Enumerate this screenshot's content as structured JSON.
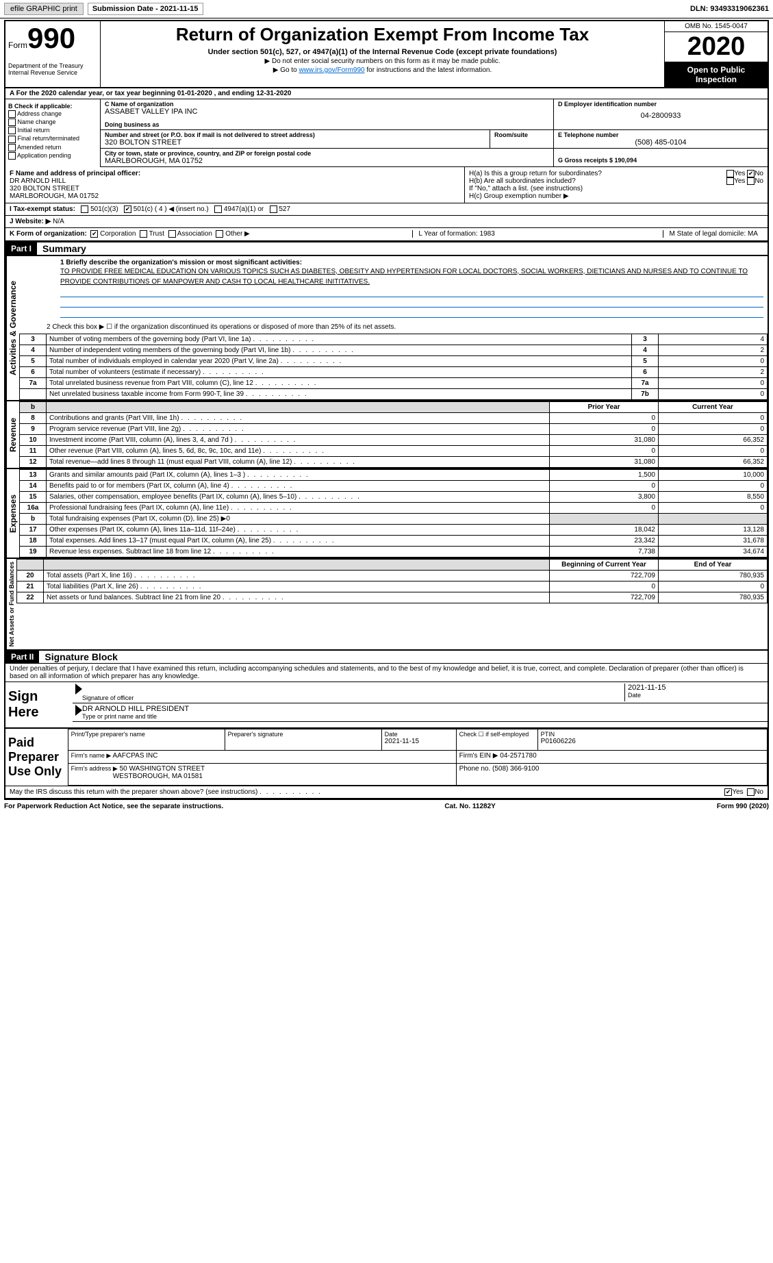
{
  "top_bar": {
    "efile_label": "efile GRAPHIC print",
    "sub_date_label": "Submission Date - 2021-11-15",
    "dln": "DLN: 93493319062361"
  },
  "header": {
    "form_word": "Form",
    "form_num": "990",
    "dept": "Department of the Treasury\nInternal Revenue Service",
    "title": "Return of Organization Exempt From Income Tax",
    "subtitle": "Under section 501(c), 527, or 4947(a)(1) of the Internal Revenue Code (except private foundations)",
    "line1": "▶ Do not enter social security numbers on this form as it may be made public.",
    "line2_pre": "▶ Go to ",
    "line2_link": "www.irs.gov/Form990",
    "line2_post": " for instructions and the latest information.",
    "omb": "OMB No. 1545-0047",
    "year": "2020",
    "otp": "Open to Public Inspection"
  },
  "section_a": "A For the 2020 calendar year, or tax year beginning 01-01-2020   , and ending 12-31-2020",
  "section_b": {
    "title": "B Check if applicable:",
    "items": [
      "Address change",
      "Name change",
      "Initial return",
      "Final return/terminated",
      "Amended return",
      "Application pending"
    ]
  },
  "section_c": {
    "name_label": "C Name of organization",
    "name": "ASSABET VALLEY IPA INC",
    "dba_label": "Doing business as",
    "addr_label": "Number and street (or P.O. box if mail is not delivered to street address)",
    "addr": "320 BOLTON STREET",
    "room_label": "Room/suite",
    "city_label": "City or town, state or province, country, and ZIP or foreign postal code",
    "city": "MARLBOROUGH, MA  01752"
  },
  "section_d": {
    "ein_label": "D Employer identification number",
    "ein": "04-2800933",
    "phone_label": "E Telephone number",
    "phone": "(508) 485-0104",
    "gross_label": "G Gross receipts $ 190,094"
  },
  "section_f": {
    "label": "F  Name and address of principal officer:",
    "name": "DR ARNOLD HILL",
    "addr1": "320 BOLTON STREET",
    "addr2": "MARLBOROUGH, MA  01752"
  },
  "section_h": {
    "ha_label": "H(a)  Is this a group return for subordinates?",
    "ha_yes": "Yes",
    "ha_no": "No",
    "hb_label": "H(b)  Are all subordinates included?",
    "hb_note": "If \"No,\" attach a list. (see instructions)",
    "hc_label": "H(c)  Group exemption number ▶"
  },
  "tax_exempt": {
    "i_label": "I   Tax-exempt status:",
    "opt1": "501(c)(3)",
    "opt2": "501(c) ( 4 ) ◀ (insert no.)",
    "opt3": "4947(a)(1) or",
    "opt4": "527"
  },
  "section_j": {
    "label": "J   Website: ▶",
    "value": "N/A"
  },
  "section_k": {
    "label": "K Form of organization:",
    "opts": [
      "Corporation",
      "Trust",
      "Association",
      "Other ▶"
    ]
  },
  "section_l": {
    "label": "L Year of formation: 1983"
  },
  "section_m": {
    "label": "M State of legal domicile: MA"
  },
  "part1": {
    "header": "Part I",
    "title": "Summary",
    "line1_label": "1  Briefly describe the organization's mission or most significant activities:",
    "mission": "TO PROVIDE FREE MEDICAL EDUCATION ON VARIOUS TOPICS SUCH AS DIABETES, OBESITY AND HYPERTENSION FOR LOCAL DOCTORS, SOCIAL WORKERS, DIETICIANS AND NURSES AND TO CONTINUE TO PROVIDE CONTRIBUTIONS OF MANPOWER AND CASH TO LOCAL HEALTHCARE INITITATIVES.",
    "line2": "2   Check this box ▶ ☐ if the organization discontinued its operations or disposed of more than 25% of its net assets."
  },
  "vert_labels": {
    "ag": "Activities & Governance",
    "rev": "Revenue",
    "exp": "Expenses",
    "nab": "Net Assets or Fund Balances"
  },
  "ag_rows": [
    {
      "n": "3",
      "t": "Number of voting members of the governing body (Part VI, line 1a)",
      "b": "3",
      "v": "4"
    },
    {
      "n": "4",
      "t": "Number of independent voting members of the governing body (Part VI, line 1b)",
      "b": "4",
      "v": "2"
    },
    {
      "n": "5",
      "t": "Total number of individuals employed in calendar year 2020 (Part V, line 2a)",
      "b": "5",
      "v": "0"
    },
    {
      "n": "6",
      "t": "Total number of volunteers (estimate if necessary)",
      "b": "6",
      "v": "2"
    },
    {
      "n": "7a",
      "t": "Total unrelated business revenue from Part VIII, column (C), line 12",
      "b": "7a",
      "v": "0"
    },
    {
      "n": "",
      "t": "Net unrelated business taxable income from Form 990-T, line 39",
      "b": "7b",
      "v": "0"
    }
  ],
  "fin_header": {
    "prior": "Prior Year",
    "current": "Current Year"
  },
  "rev_rows": [
    {
      "n": "8",
      "t": "Contributions and grants (Part VIII, line 1h)",
      "p": "0",
      "c": "0"
    },
    {
      "n": "9",
      "t": "Program service revenue (Part VIII, line 2g)",
      "p": "0",
      "c": "0"
    },
    {
      "n": "10",
      "t": "Investment income (Part VIII, column (A), lines 3, 4, and 7d )",
      "p": "31,080",
      "c": "66,352"
    },
    {
      "n": "11",
      "t": "Other revenue (Part VIII, column (A), lines 5, 6d, 8c, 9c, 10c, and 11e)",
      "p": "0",
      "c": "0"
    },
    {
      "n": "12",
      "t": "Total revenue—add lines 8 through 11 (must equal Part VIII, column (A), line 12)",
      "p": "31,080",
      "c": "66,352"
    }
  ],
  "exp_rows": [
    {
      "n": "13",
      "t": "Grants and similar amounts paid (Part IX, column (A), lines 1–3 )",
      "p": "1,500",
      "c": "10,000"
    },
    {
      "n": "14",
      "t": "Benefits paid to or for members (Part IX, column (A), line 4)",
      "p": "0",
      "c": "0"
    },
    {
      "n": "15",
      "t": "Salaries, other compensation, employee benefits (Part IX, column (A), lines 5–10)",
      "p": "3,800",
      "c": "8,550"
    },
    {
      "n": "16a",
      "t": "Professional fundraising fees (Part IX, column (A), line 11e)",
      "p": "0",
      "c": "0"
    },
    {
      "n": "b",
      "t": "Total fundraising expenses (Part IX, column (D), line 25) ▶0",
      "p": "",
      "c": "",
      "shade": true
    },
    {
      "n": "17",
      "t": "Other expenses (Part IX, column (A), lines 11a–11d, 11f–24e)",
      "p": "18,042",
      "c": "13,128"
    },
    {
      "n": "18",
      "t": "Total expenses. Add lines 13–17 (must equal Part IX, column (A), line 25)",
      "p": "23,342",
      "c": "31,678"
    },
    {
      "n": "19",
      "t": "Revenue less expenses. Subtract line 18 from line 12",
      "p": "7,738",
      "c": "34,674"
    }
  ],
  "nab_header": {
    "b": "Beginning of Current Year",
    "e": "End of Year"
  },
  "nab_rows": [
    {
      "n": "20",
      "t": "Total assets (Part X, line 16)",
      "p": "722,709",
      "c": "780,935"
    },
    {
      "n": "21",
      "t": "Total liabilities (Part X, line 26)",
      "p": "0",
      "c": "0"
    },
    {
      "n": "22",
      "t": "Net assets or fund balances. Subtract line 21 from line 20",
      "p": "722,709",
      "c": "780,935"
    }
  ],
  "part2": {
    "header": "Part II",
    "title": "Signature Block",
    "declaration": "Under penalties of perjury, I declare that I have examined this return, including accompanying schedules and statements, and to the best of my knowledge and belief, it is true, correct, and complete. Declaration of preparer (other than officer) is based on all information of which preparer has any knowledge."
  },
  "sign": {
    "label": "Sign Here",
    "sig_of_officer": "Signature of officer",
    "date": "2021-11-15",
    "date_label": "Date",
    "name": "DR ARNOLD HILL  PRESIDENT",
    "name_label": "Type or print name and title"
  },
  "prep": {
    "label": "Paid Preparer Use Only",
    "print_name_label": "Print/Type preparer's name",
    "sig_label": "Preparer's signature",
    "date_label": "Date",
    "date": "2021-11-15",
    "check_label": "Check ☐ if self-employed",
    "ptin_label": "PTIN",
    "ptin": "P01606226",
    "firm_name_label": "Firm's name    ▶",
    "firm_name": "AAFCPAS INC",
    "firm_ein_label": "Firm's EIN ▶ 04-2571780",
    "firm_addr_label": "Firm's address ▶",
    "firm_addr1": "50 WASHINGTON STREET",
    "firm_addr2": "WESTBOROUGH, MA  01581",
    "phone_label": "Phone no. (508) 366-9100"
  },
  "discuss": {
    "text": "May the IRS discuss this return with the preparer shown above? (see instructions)",
    "yes": "Yes",
    "no": "No"
  },
  "footer": {
    "left": "For Paperwork Reduction Act Notice, see the separate instructions.",
    "center": "Cat. No. 11282Y",
    "right": "Form 990 (2020)"
  }
}
